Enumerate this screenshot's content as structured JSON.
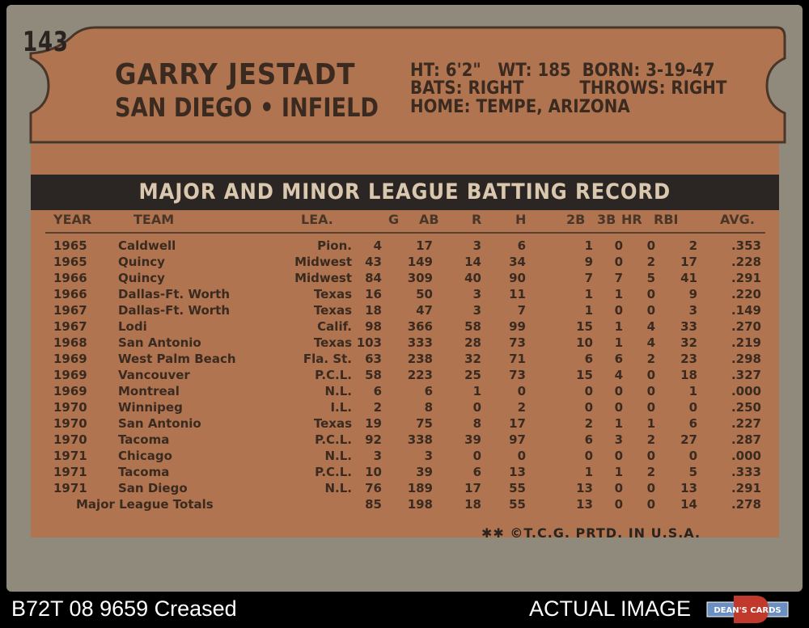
{
  "card": {
    "number": "143",
    "name": "GARRY JESTADT",
    "team": "SAN DIEGO",
    "position": "INFIELD",
    "separator": "•",
    "bio_line1": "HT: 6'2\"   WT: 185  BORN: 3-19-47",
    "bio_line2": "BATS: RIGHT          THROWS: RIGHT",
    "bio_line3": "HOME: TEMPE, ARIZONA",
    "record_title": "MAJOR AND MINOR LEAGUE BATTING RECORD",
    "headers": [
      "YEAR",
      "TEAM",
      "LEA.",
      "G",
      "AB",
      "R",
      "H",
      "2B",
      "3B",
      "HR",
      "RBI",
      "AVG."
    ],
    "rows": [
      [
        "1965",
        "Caldwell",
        "Pion.",
        "4",
        "17",
        "3",
        "6",
        "1",
        "0",
        "0",
        "2",
        ".353"
      ],
      [
        "1965",
        "Quincy",
        "Midwest",
        "43",
        "149",
        "14",
        "34",
        "9",
        "0",
        "2",
        "17",
        ".228"
      ],
      [
        "1966",
        "Quincy",
        "Midwest",
        "84",
        "309",
        "40",
        "90",
        "7",
        "7",
        "5",
        "41",
        ".291"
      ],
      [
        "1966",
        "Dallas-Ft. Worth",
        "Texas",
        "16",
        "50",
        "3",
        "11",
        "1",
        "1",
        "0",
        "9",
        ".220"
      ],
      [
        "1967",
        "Dallas-Ft. Worth",
        "Texas",
        "18",
        "47",
        "3",
        "7",
        "1",
        "0",
        "0",
        "3",
        ".149"
      ],
      [
        "1967",
        "Lodi",
        "Calif.",
        "98",
        "366",
        "58",
        "99",
        "15",
        "1",
        "4",
        "33",
        ".270"
      ],
      [
        "1968",
        "San Antonio",
        "Texas",
        "103",
        "333",
        "28",
        "73",
        "10",
        "1",
        "4",
        "32",
        ".219"
      ],
      [
        "1969",
        "West Palm Beach",
        "Fla. St.",
        "63",
        "238",
        "32",
        "71",
        "6",
        "6",
        "2",
        "23",
        ".298"
      ],
      [
        "1969",
        "Vancouver",
        "P.C.L.",
        "58",
        "223",
        "25",
        "73",
        "15",
        "4",
        "0",
        "18",
        ".327"
      ],
      [
        "1969",
        "Montreal",
        "N.L.",
        "6",
        "6",
        "1",
        "0",
        "0",
        "0",
        "0",
        "1",
        ".000"
      ],
      [
        "1970",
        "Winnipeg",
        "I.L.",
        "2",
        "8",
        "0",
        "2",
        "0",
        "0",
        "0",
        "0",
        ".250"
      ],
      [
        "1970",
        "San Antonio",
        "Texas",
        "19",
        "75",
        "8",
        "17",
        "2",
        "1",
        "1",
        "6",
        ".227"
      ],
      [
        "1970",
        "Tacoma",
        "P.C.L.",
        "92",
        "338",
        "39",
        "97",
        "6",
        "3",
        "2",
        "27",
        ".287"
      ],
      [
        "1971",
        "Chicago",
        "N.L.",
        "3",
        "3",
        "0",
        "0",
        "0",
        "0",
        "0",
        "0",
        ".000"
      ],
      [
        "1971",
        "Tacoma",
        "P.C.L.",
        "10",
        "39",
        "6",
        "13",
        "1",
        "1",
        "2",
        "5",
        ".333"
      ],
      [
        "1971",
        "San Diego",
        "N.L.",
        "76",
        "189",
        "17",
        "55",
        "13",
        "0",
        "0",
        "13",
        ".291"
      ]
    ],
    "totals": [
      "Major League Totals",
      "85",
      "198",
      "18",
      "55",
      "13",
      "0",
      "0",
      "14",
      ".278"
    ],
    "footer": "✱✱ ©T.C.G. PRTD. IN U.S.A."
  },
  "caption": {
    "left": "B72T 08 9659 Creased",
    "right": "ACTUAL IMAGE",
    "logo_text": "DEAN'S CARDS"
  },
  "colors": {
    "banner": "#b07550",
    "panel": "#b07550",
    "title_bar": "#2b2624",
    "card_border": "#8f8a7c",
    "ink": "#3a2a20"
  }
}
